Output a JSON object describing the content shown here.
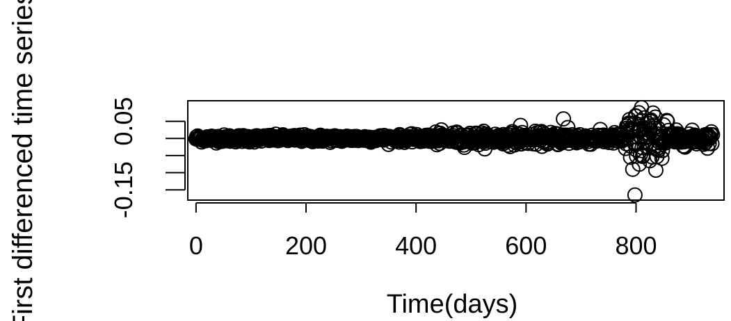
{
  "chart_data": {
    "type": "scatter",
    "title": "",
    "xlabel": "Time(days)",
    "ylabel": "First differenced time series",
    "xlim": [
      -15,
      960
    ],
    "ylim": [
      -0.18,
      0.11
    ],
    "x_ticks": [
      0,
      200,
      400,
      600,
      800
    ],
    "x_tick_labels": [
      "0",
      "200",
      "400",
      "600",
      "800"
    ],
    "y_ticks": [
      -0.15,
      -0.1,
      -0.05,
      0,
      0.05
    ],
    "y_tick_labels": [
      "-0.15",
      "",
      "",
      "",
      "0.05"
    ],
    "grid": false,
    "legend": "none",
    "marker": "open-circle",
    "n_points": 940,
    "x_start": 0,
    "x_step": 1,
    "y_noise_baseline": 0.004,
    "y_noise_by_range": [
      {
        "x_from": 0,
        "x_to": 420,
        "y_sd": 0.005
      },
      {
        "x_from": 420,
        "x_to": 700,
        "y_sd": 0.009
      },
      {
        "x_from": 700,
        "x_to": 780,
        "y_sd": 0.008
      },
      {
        "x_from": 780,
        "x_to": 860,
        "y_sd": 0.035
      },
      {
        "x_from": 860,
        "x_to": 940,
        "y_sd": 0.01
      }
    ],
    "notable_points": [
      {
        "x": 590,
        "y": 0.038
      },
      {
        "x": 668,
        "y": 0.057
      },
      {
        "x": 676,
        "y": 0.032
      },
      {
        "x": 797,
        "y": 0.045
      },
      {
        "x": 800,
        "y": 0.065
      },
      {
        "x": 805,
        "y": 0.075
      },
      {
        "x": 810,
        "y": 0.09
      },
      {
        "x": 815,
        "y": 0.06
      },
      {
        "x": 790,
        "y": -0.055
      },
      {
        "x": 794,
        "y": -0.09
      },
      {
        "x": 798,
        "y": -0.165
      },
      {
        "x": 806,
        "y": -0.075
      },
      {
        "x": 812,
        "y": -0.05
      },
      {
        "x": 825,
        "y": -0.065
      },
      {
        "x": 833,
        "y": 0.03
      },
      {
        "x": 840,
        "y": -0.035
      }
    ]
  }
}
